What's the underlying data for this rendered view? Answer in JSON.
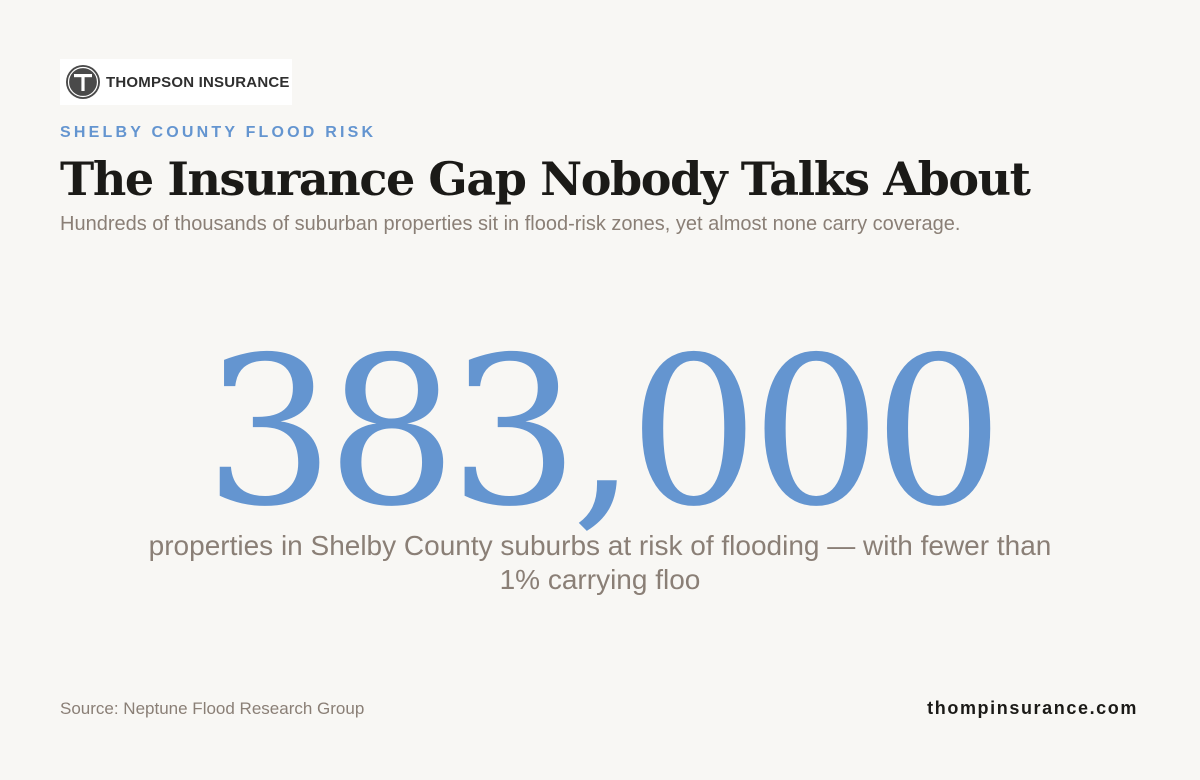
{
  "brand": {
    "logo_text": "THOMPSON INSURANCE",
    "logo_icon": "t-monogram-icon",
    "logo_colors": {
      "circle": "#4a4a4a",
      "letter": "#ffffff"
    }
  },
  "header": {
    "eyebrow": "SHELBY COUNTY FLOOD RISK",
    "title": "The Insurance Gap Nobody Talks About",
    "subtitle": "Hundreds of thousands of suburban properties sit in flood-risk zones, yet almost none carry coverage."
  },
  "stat": {
    "value": "383,000",
    "caption": "properties in Shelby County suburbs at risk of flooding — with fewer than 1% carrying floo"
  },
  "footer": {
    "source": "Source: Neptune Flood Research Group",
    "website": "thompinsurance.com"
  },
  "colors": {
    "background": "#f8f7f4",
    "accent": "#6495d0",
    "headline": "#1b1a17",
    "muted_text": "#8a7f76"
  }
}
